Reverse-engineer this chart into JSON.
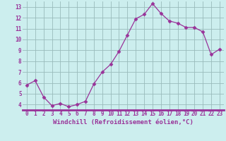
{
  "x": [
    0,
    1,
    2,
    3,
    4,
    5,
    6,
    7,
    8,
    9,
    10,
    11,
    12,
    13,
    14,
    15,
    16,
    17,
    18,
    19,
    20,
    21,
    22,
    23
  ],
  "y": [
    5.8,
    6.2,
    4.7,
    3.9,
    4.1,
    3.8,
    4.0,
    4.3,
    5.9,
    7.0,
    7.7,
    8.9,
    10.4,
    11.9,
    12.3,
    13.3,
    12.4,
    11.7,
    11.5,
    11.1,
    11.1,
    10.7,
    8.6,
    9.1
  ],
  "line_color": "#993399",
  "marker": "D",
  "marker_size": 2.5,
  "bg_color": "#cceeee",
  "grid_color": "#99bbbb",
  "axis_line_color": "#993399",
  "xlabel": "Windchill (Refroidissement éolien,°C)",
  "xlabel_color": "#993399",
  "tick_color": "#993399",
  "xlim": [
    -0.5,
    23.5
  ],
  "ylim": [
    3.5,
    13.5
  ],
  "yticks": [
    4,
    5,
    6,
    7,
    8,
    9,
    10,
    11,
    12,
    13
  ],
  "xticks": [
    0,
    1,
    2,
    3,
    4,
    5,
    6,
    7,
    8,
    9,
    10,
    11,
    12,
    13,
    14,
    15,
    16,
    17,
    18,
    19,
    20,
    21,
    22,
    23
  ],
  "tick_fontsize": 5.5,
  "xlabel_fontsize": 6.5
}
